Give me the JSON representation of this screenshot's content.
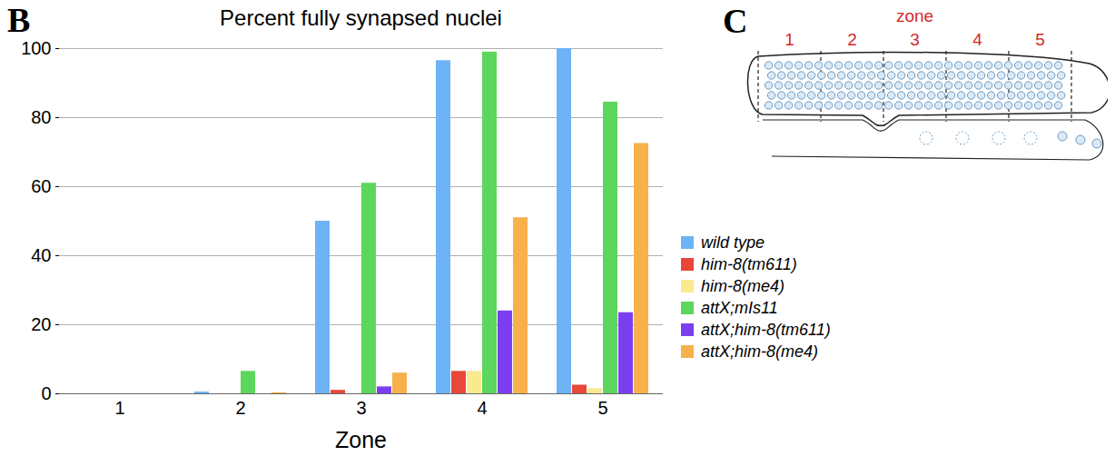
{
  "chart_data": {
    "type": "bar",
    "panel": "B",
    "title": "Percent fully synapsed nuclei",
    "xlabel": "Zone",
    "categories": [
      "1",
      "2",
      "3",
      "4",
      "5"
    ],
    "series": [
      {
        "name": "wild type",
        "color": "#6cb4f5",
        "values": [
          0,
          0.5,
          50,
          96.5,
          100
        ]
      },
      {
        "name": "him-8(tm611)",
        "color": "#e8473a",
        "values": [
          0,
          0,
          1,
          6.5,
          2.5
        ]
      },
      {
        "name": "him-8(me4)",
        "color": "#fbe98f",
        "values": [
          0,
          0,
          0,
          6.5,
          1.5
        ]
      },
      {
        "name": "attX;mIs11",
        "color": "#5cd65c",
        "values": [
          0,
          6.5,
          61,
          99,
          84.5
        ]
      },
      {
        "name": "attX;him-8(tm611)",
        "color": "#7b3ff0",
        "values": [
          0,
          0,
          2,
          24,
          23.5
        ]
      },
      {
        "name": "attX;him-8(me4)",
        "color": "#f8b04b",
        "values": [
          0,
          0.3,
          6,
          51,
          72.5
        ]
      }
    ],
    "ylim": [
      0,
      100
    ],
    "yticks": [
      0,
      20,
      40,
      60,
      80,
      100
    ],
    "grid": true,
    "legend": "right"
  },
  "diagram": {
    "panel": "C",
    "title": "zone",
    "zones": [
      "1",
      "2",
      "3",
      "4",
      "5"
    ]
  }
}
